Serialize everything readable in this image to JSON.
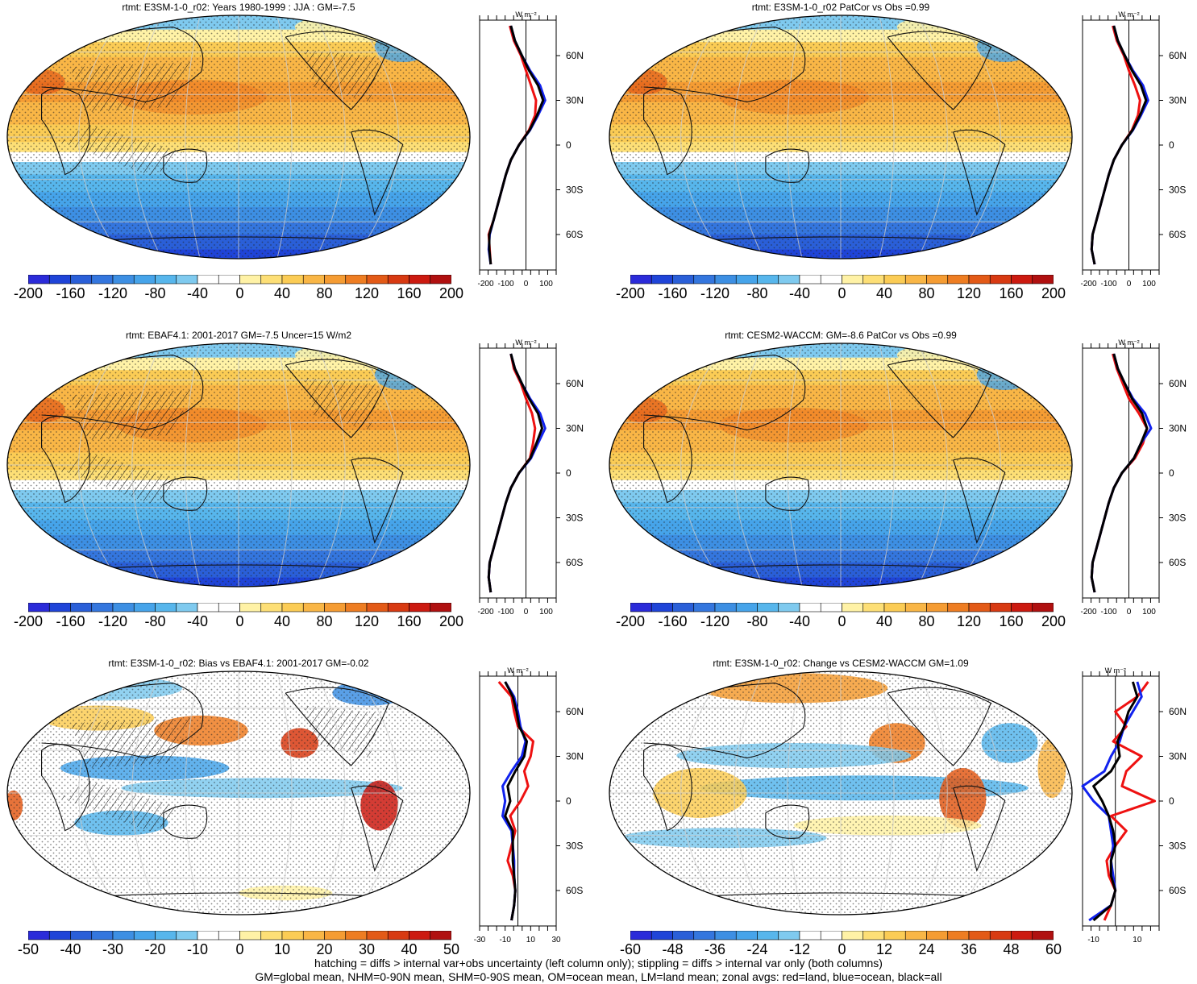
{
  "colors": {
    "abs": [
      "#2b2bd9",
      "#1f44d8",
      "#2a5fd8",
      "#3476de",
      "#3d8fe3",
      "#46a4ea",
      "#57b6ec",
      "#7fcaef",
      "#ffffff",
      "#ffffff",
      "#fff2a6",
      "#fddf76",
      "#fbcc55",
      "#f9b646",
      "#f59c33",
      "#ee7d22",
      "#e35a17",
      "#d83a12",
      "#cc1a10"
    ],
    "zonal_land": "#ee1111",
    "zonal_ocean": "#1122ee",
    "zonal_all": "#000000"
  },
  "panels": [
    {
      "title": "rtmt: E3SM-1-0_r02: Years 1980-1999 : JJA : GM=-7.5",
      "kind": "abs",
      "hatch": true,
      "cbar_labels": [
        "-200",
        "-160",
        "-120",
        "-80",
        "-40",
        "0",
        "40",
        "80",
        "120",
        "160",
        "200"
      ],
      "zonal_ticks": [
        "-200",
        "-100",
        "0",
        "100"
      ],
      "zonal_unit": "W m⁻²"
    },
    {
      "title": "rtmt: E3SM-1-0_r02 PatCor vs Obs =0.99",
      "kind": "abs",
      "hatch": false,
      "cbar_labels": [
        "-200",
        "-160",
        "-120",
        "-80",
        "-40",
        "0",
        "40",
        "80",
        "120",
        "160",
        "200"
      ],
      "zonal_ticks": [
        "-200",
        "-100",
        "0",
        "100"
      ],
      "zonal_unit": "W m⁻²"
    },
    {
      "title": "rtmt: EBAF4.1: 2001-2017 GM=-7.5 Uncer=15 W/m2",
      "kind": "abs",
      "hatch": true,
      "cbar_labels": [
        "-200",
        "-160",
        "-120",
        "-80",
        "-40",
        "0",
        "40",
        "80",
        "120",
        "160",
        "200"
      ],
      "zonal_ticks": [
        "-200",
        "-100",
        "0",
        "100"
      ],
      "zonal_unit": "W m⁻²"
    },
    {
      "title": "rtmt: CESM2-WACCM: GM=-8.6 PatCor vs Obs =0.99",
      "kind": "abs",
      "hatch": false,
      "cbar_labels": [
        "-200",
        "-160",
        "-120",
        "-80",
        "-40",
        "0",
        "40",
        "80",
        "120",
        "160",
        "200"
      ],
      "zonal_ticks": [
        "-200",
        "-100",
        "0",
        "100"
      ],
      "zonal_unit": "W m⁻²"
    },
    {
      "title": "rtmt: E3SM-1-0_r02: Bias vs EBAF4.1: 2001-2017 GM=-0.02",
      "kind": "diff",
      "hatch": true,
      "cbar_labels": [
        "-50",
        "-40",
        "-30",
        "-20",
        "-10",
        "0",
        "10",
        "20",
        "30",
        "40",
        "50"
      ],
      "zonal_ticks": [
        "-30",
        "-10",
        "10",
        "30"
      ],
      "zonal_unit": "W m⁻²"
    },
    {
      "title": "rtmt: E3SM-1-0_r02: Change vs CESM2-WACCM GM=1.09",
      "kind": "diff",
      "hatch": false,
      "cbar_labels": [
        "-60",
        "-48",
        "-36",
        "-24",
        "-12",
        "0",
        "12",
        "24",
        "36",
        "48",
        "60"
      ],
      "zonal_ticks": [
        "-10",
        "10"
      ],
      "zonal_unit": "W m⁻²"
    }
  ],
  "lat_labels": [
    "60N",
    "30N",
    "0",
    "30S",
    "60S"
  ],
  "footer": {
    "line1": "hatching = diffs > internal var+obs uncertainty (left column only); stippling = diffs > internal var only (both columns)",
    "line2": "GM=global mean, NHM=0-90N mean, SHM=0-90S mean, OM=ocean mean, LM=land mean; zonal avgs: red=land, blue=ocean, black=all"
  },
  "chart_data": [
    {
      "type": "line",
      "panel": "E3SM-1-0_r02 JJA zonal mean rtmt",
      "xlabel": "W m⁻²",
      "xlim": [
        -230,
        150
      ],
      "y": [
        -80,
        -70,
        -60,
        -50,
        -40,
        -30,
        -20,
        -10,
        0,
        10,
        20,
        30,
        40,
        50,
        60,
        70,
        80
      ],
      "series": [
        {
          "name": "land",
          "values": [
            -175,
            -180,
            -185,
            -160,
            -140,
            -120,
            -100,
            -75,
            -35,
            15,
            45,
            50,
            25,
            0,
            -25,
            -60,
            -80
          ]
        },
        {
          "name": "ocean",
          "values": [
            -175,
            -185,
            -180,
            -160,
            -140,
            -120,
            -100,
            -75,
            -35,
            20,
            60,
            95,
            70,
            20,
            -20,
            -55,
            -75
          ]
        },
        {
          "name": "all",
          "values": [
            -175,
            -182,
            -182,
            -160,
            -140,
            -120,
            -100,
            -75,
            -35,
            18,
            55,
            85,
            60,
            15,
            -20,
            -55,
            -75
          ]
        }
      ]
    },
    {
      "type": "line",
      "panel": "E3SM-1-0_r02 vs Obs zonal mean rtmt",
      "xlabel": "W m⁻²",
      "xlim": [
        -230,
        150
      ],
      "y": [
        -80,
        -70,
        -60,
        -50,
        -40,
        -30,
        -20,
        -10,
        0,
        10,
        20,
        30,
        40,
        50,
        60,
        70,
        80
      ],
      "series": [
        {
          "name": "land",
          "values": [
            -170,
            -185,
            -180,
            -160,
            -140,
            -120,
            -100,
            -75,
            -35,
            15,
            45,
            55,
            30,
            0,
            -25,
            -60,
            -80
          ]
        },
        {
          "name": "ocean",
          "values": [
            -170,
            -185,
            -180,
            -160,
            -140,
            -120,
            -100,
            -75,
            -35,
            20,
            60,
            95,
            70,
            20,
            -20,
            -55,
            -75
          ]
        },
        {
          "name": "all",
          "values": [
            -170,
            -185,
            -180,
            -160,
            -140,
            -120,
            -100,
            -75,
            -35,
            18,
            55,
            85,
            60,
            15,
            -20,
            -55,
            -75
          ]
        }
      ]
    },
    {
      "type": "line",
      "panel": "EBAF4.1 zonal mean rtmt",
      "xlabel": "W m⁻²",
      "xlim": [
        -230,
        150
      ],
      "y": [
        -80,
        -70,
        -60,
        -50,
        -40,
        -30,
        -20,
        -10,
        0,
        10,
        20,
        30,
        40,
        50,
        60,
        70,
        80
      ],
      "series": [
        {
          "name": "land",
          "values": [
            -175,
            -185,
            -180,
            -160,
            -140,
            -120,
            -100,
            -75,
            -35,
            20,
            35,
            45,
            30,
            0,
            -25,
            -60,
            -75
          ]
        },
        {
          "name": "ocean",
          "values": [
            -175,
            -185,
            -180,
            -160,
            -140,
            -120,
            -100,
            -75,
            -35,
            25,
            60,
            95,
            70,
            20,
            -20,
            -55,
            -75
          ]
        },
        {
          "name": "all",
          "values": [
            -175,
            -185,
            -180,
            -160,
            -140,
            -120,
            -100,
            -75,
            -35,
            22,
            52,
            80,
            60,
            15,
            -20,
            -55,
            -75
          ]
        }
      ]
    },
    {
      "type": "line",
      "panel": "CESM2-WACCM zonal mean rtmt",
      "xlabel": "W m⁻²",
      "xlim": [
        -230,
        150
      ],
      "y": [
        -80,
        -70,
        -60,
        -50,
        -40,
        -30,
        -20,
        -10,
        0,
        10,
        20,
        30,
        40,
        50,
        60,
        70,
        80
      ],
      "series": [
        {
          "name": "land",
          "values": [
            -170,
            -185,
            -180,
            -160,
            -140,
            -120,
            -100,
            -75,
            -35,
            30,
            70,
            90,
            50,
            0,
            -30,
            -60,
            -80
          ]
        },
        {
          "name": "ocean",
          "values": [
            -170,
            -185,
            -180,
            -160,
            -140,
            -120,
            -100,
            -75,
            -35,
            25,
            60,
            110,
            80,
            20,
            -20,
            -55,
            -75
          ]
        },
        {
          "name": "all",
          "values": [
            -170,
            -185,
            -180,
            -160,
            -140,
            -120,
            -100,
            -75,
            -35,
            25,
            60,
            90,
            65,
            15,
            -20,
            -55,
            -75
          ]
        }
      ]
    },
    {
      "type": "line",
      "panel": "E3SM bias vs EBAF4.1 zonal mean",
      "xlabel": "W m⁻²",
      "xlim": [
        -30,
        30
      ],
      "y": [
        -80,
        -70,
        -60,
        -50,
        -40,
        -30,
        -20,
        -10,
        0,
        10,
        20,
        30,
        40,
        50,
        60,
        70,
        80
      ],
      "series": [
        {
          "name": "land",
          "values": [
            -5,
            -3,
            -2,
            -4,
            -8,
            -5,
            -2,
            -6,
            2,
            8,
            5,
            10,
            12,
            0,
            -3,
            -5,
            -15
          ]
        },
        {
          "name": "ocean",
          "values": [
            -5,
            -3,
            -2,
            -3,
            -3,
            -4,
            -5,
            -12,
            -10,
            -12,
            -5,
            3,
            6,
            2,
            0,
            -3,
            -10
          ]
        },
        {
          "name": "all",
          "values": [
            -5,
            -3,
            -2,
            -3,
            -4,
            -4,
            -4,
            -10,
            -6,
            -8,
            -2,
            5,
            7,
            1,
            -1,
            -4,
            -10
          ]
        }
      ]
    },
    {
      "type": "line",
      "panel": "E3SM change vs CESM2-WACCM zonal mean",
      "xlabel": "W m⁻²",
      "xlim": [
        -15,
        20
      ],
      "y": [
        -80,
        -70,
        -60,
        -50,
        -40,
        -30,
        -20,
        -10,
        0,
        10,
        20,
        30,
        40,
        50,
        60,
        70,
        80
      ],
      "series": [
        {
          "name": "land",
          "values": [
            -5,
            -2,
            0,
            -3,
            -4,
            0,
            5,
            -2,
            18,
            3,
            5,
            12,
            -1,
            5,
            0,
            10,
            15
          ]
        },
        {
          "name": "ocean",
          "values": [
            -12,
            -2,
            0,
            -1,
            -2,
            -1,
            -2,
            -3,
            -10,
            -15,
            -5,
            -2,
            2,
            4,
            8,
            12,
            10
          ]
        },
        {
          "name": "all",
          "values": [
            -10,
            -2,
            0,
            -2,
            -2,
            0,
            -1,
            -3,
            -6,
            -10,
            -2,
            2,
            1,
            4,
            6,
            10,
            8
          ]
        }
      ]
    }
  ]
}
